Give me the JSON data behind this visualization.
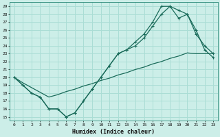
{
  "xlabel": "Humidex (Indice chaleur)",
  "bg_color": "#cceee8",
  "grid_color": "#aaddd5",
  "line_color": "#1a6b5a",
  "xlim": [
    -0.5,
    23.5
  ],
  "ylim": [
    14.5,
    29.5
  ],
  "xticks": [
    0,
    1,
    2,
    3,
    4,
    5,
    6,
    7,
    8,
    9,
    10,
    11,
    12,
    13,
    14,
    15,
    16,
    17,
    18,
    19,
    20,
    21,
    22,
    23
  ],
  "yticks": [
    15,
    16,
    17,
    18,
    19,
    20,
    21,
    22,
    23,
    24,
    25,
    26,
    27,
    28,
    29
  ],
  "line1_x": [
    0,
    1,
    2,
    3,
    4,
    5,
    6,
    7,
    8,
    9,
    10,
    11,
    12,
    13,
    14,
    15,
    16,
    17,
    18,
    19,
    20,
    21,
    22,
    23
  ],
  "line1_y": [
    20,
    19,
    18,
    17.5,
    16,
    16,
    15,
    15.5,
    17,
    18.5,
    20,
    21.5,
    23,
    23.5,
    24.5,
    25.5,
    27,
    29,
    29,
    28.5,
    28,
    26,
    23.5,
    22.5
  ],
  "line2_x": [
    0,
    1,
    2,
    3,
    4,
    5,
    6,
    7,
    8,
    9,
    10,
    11,
    12,
    13,
    14,
    15,
    16,
    17,
    18,
    19,
    20,
    21,
    22,
    23
  ],
  "line2_y": [
    20,
    19,
    18,
    17.5,
    16,
    16,
    15,
    15.5,
    17,
    18.5,
    20,
    21.5,
    23,
    23.5,
    24,
    25,
    26.5,
    28,
    29,
    27.5,
    28,
    25.5,
    24,
    23
  ],
  "line3_x": [
    0,
    1,
    2,
    3,
    4,
    5,
    6,
    7,
    8,
    9,
    10,
    11,
    12,
    13,
    14,
    15,
    16,
    17,
    18,
    19,
    20,
    21,
    22,
    23
  ],
  "line3_y": [
    20,
    19.3,
    18.7,
    18.1,
    17.5,
    17.8,
    18.2,
    18.5,
    18.9,
    19.2,
    19.6,
    19.9,
    20.3,
    20.6,
    21.0,
    21.3,
    21.7,
    22.0,
    22.4,
    22.7,
    23.1,
    23.0,
    23.0,
    23.0
  ]
}
